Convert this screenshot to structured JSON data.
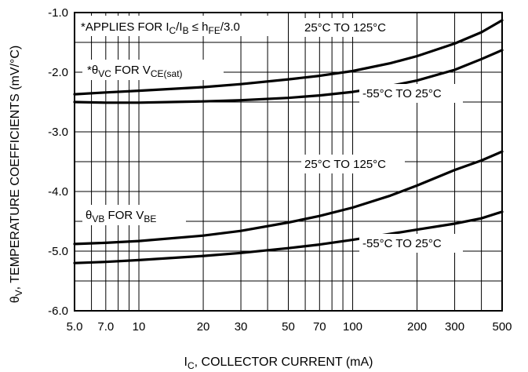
{
  "chart_data": {
    "type": "line",
    "x_scale": "log",
    "xlim": [
      5,
      500
    ],
    "ylim": [
      -6.0,
      -1.0
    ],
    "x_ticks": [
      5,
      7,
      10,
      20,
      30,
      50,
      70,
      100,
      200,
      300,
      500
    ],
    "x_tick_labels": [
      "5.0",
      "7.0",
      "10",
      "20",
      "30",
      "50",
      "70",
      "100",
      "200",
      "300",
      "500"
    ],
    "x_minor_grid": [
      6,
      8,
      9,
      40,
      60,
      80,
      90,
      400
    ],
    "y_ticks": [
      -1.0,
      -2.0,
      -3.0,
      -4.0,
      -5.0,
      -6.0
    ],
    "y_tick_labels": [
      "-1.0",
      "-2.0",
      "-3.0",
      "-4.0",
      "-5.0",
      "-6.0"
    ],
    "y_minor_grid": [
      -1.5,
      -2.5,
      -3.5,
      -4.5,
      -5.5
    ],
    "grid": true,
    "xlabel": {
      "main": "I",
      "sub": "C",
      "rest": ", COLLECTOR CURRENT (mA)"
    },
    "ylabel": {
      "main": "θ",
      "sub": "V",
      "rest": ", TEMPERATURE COEFFICIENTS (mV/°C)"
    },
    "note": {
      "pre": "*APPLIES FOR I",
      "sub1": "C",
      "mid": "/I",
      "sub2": "B",
      "le": " ≤ h",
      "sub3": "FE",
      "post": "/3.0"
    },
    "group_labels": [
      {
        "pre": "*θ",
        "sub": "VC",
        "mid": " FOR V",
        "sub2": "CE(sat)"
      },
      {
        "pre": "θ",
        "sub": "VB",
        "mid": " FOR V",
        "sub2": "BE"
      }
    ],
    "series": [
      {
        "name": "25°C TO 125°C",
        "group": "θVC",
        "x": [
          5,
          7,
          10,
          20,
          30,
          50,
          70,
          100,
          150,
          200,
          300,
          400,
          500
        ],
        "y": [
          -2.37,
          -2.34,
          -2.31,
          -2.25,
          -2.2,
          -2.12,
          -2.06,
          -1.98,
          -1.85,
          -1.73,
          -1.52,
          -1.33,
          -1.13
        ]
      },
      {
        "name": "-55°C TO 25°C",
        "group": "θVC",
        "x": [
          5,
          7,
          10,
          20,
          30,
          50,
          70,
          100,
          150,
          200,
          300,
          400,
          500
        ],
        "y": [
          -2.5,
          -2.51,
          -2.51,
          -2.49,
          -2.47,
          -2.43,
          -2.39,
          -2.33,
          -2.23,
          -2.14,
          -1.96,
          -1.78,
          -1.63
        ]
      },
      {
        "name": "25°C TO 125°C",
        "group": "θVB",
        "x": [
          5,
          7,
          10,
          20,
          30,
          50,
          70,
          100,
          150,
          200,
          300,
          400,
          500
        ],
        "y": [
          -4.88,
          -4.86,
          -4.83,
          -4.74,
          -4.66,
          -4.52,
          -4.41,
          -4.27,
          -4.07,
          -3.9,
          -3.64,
          -3.48,
          -3.33
        ]
      },
      {
        "name": "-55°C TO 25°C",
        "group": "θVB",
        "x": [
          5,
          7,
          10,
          20,
          30,
          50,
          70,
          100,
          150,
          200,
          300,
          400,
          500
        ],
        "y": [
          -5.2,
          -5.18,
          -5.15,
          -5.08,
          -5.03,
          -4.95,
          -4.89,
          -4.81,
          -4.71,
          -4.64,
          -4.54,
          -4.45,
          -4.34
        ]
      }
    ],
    "series_labels": [
      {
        "text": "25°C TO 125°C",
        "series": 0
      },
      {
        "text": "-55°C TO 25°C",
        "series": 1
      },
      {
        "text": "25°C TO 125°C",
        "series": 2
      },
      {
        "text": "-55°C TO 25°C",
        "series": 3
      }
    ]
  }
}
